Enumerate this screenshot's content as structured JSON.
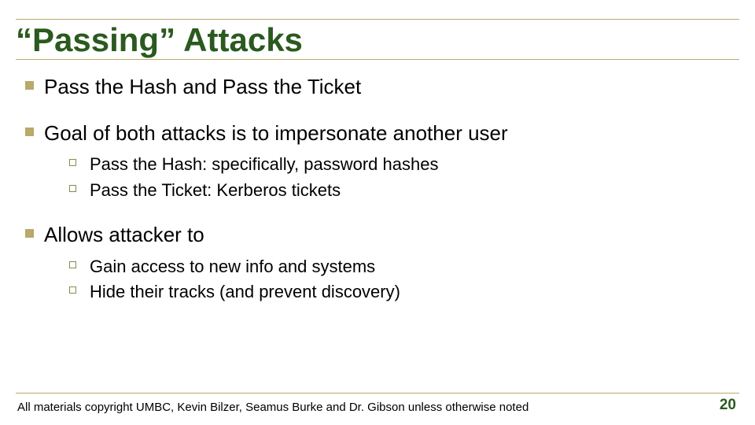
{
  "colors": {
    "title": "#2a5a1e",
    "rule": "#b9a96a",
    "bullet_square": "#b9a96a",
    "bullet_outline": "#8a8a4a",
    "body_text": "#000000",
    "footer_text": "#000000",
    "page_num": "#2a5a1e",
    "background": "#ffffff"
  },
  "fonts": {
    "title_size": 42,
    "l1_size": 26,
    "l2_size": 22,
    "footer_size": 15,
    "page_num_size": 19
  },
  "title": "“Passing” Attacks",
  "bullets": [
    {
      "text": "Pass the Hash and Pass the Ticket",
      "sub": []
    },
    {
      "text": "Goal of both attacks is to impersonate another user",
      "sub": [
        "Pass the Hash: specifically, password hashes",
        "Pass the Ticket: Kerberos tickets"
      ]
    },
    {
      "text": "Allows attacker to",
      "sub": [
        "Gain access to new info and systems",
        "Hide their tracks (and prevent discovery)"
      ]
    }
  ],
  "footer": "All materials copyright UMBC, Kevin Bilzer, Seamus Burke and Dr. Gibson unless otherwise noted",
  "page_number": "20"
}
